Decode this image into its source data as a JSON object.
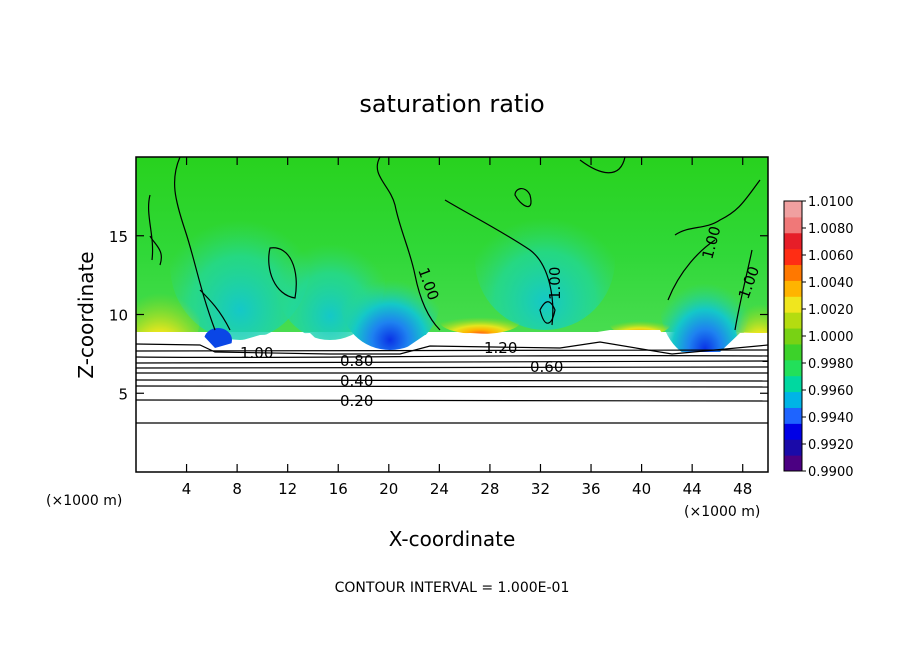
{
  "chart_data": {
    "type": "heatmap",
    "title": "saturation ratio",
    "xlabel": "X-coordinate",
    "ylabel": "Z-coordinate",
    "x_unit": "(×1000 m)",
    "xlim": [
      0,
      50
    ],
    "ylim": [
      0,
      20
    ],
    "x_ticks": [
      4,
      8,
      12,
      16,
      20,
      24,
      28,
      32,
      36,
      40,
      44,
      48
    ],
    "y_ticks": [
      5,
      10,
      15
    ],
    "colorbar": {
      "min": 0.99,
      "max": 1.01,
      "ticks": [
        "1.0100",
        "1.0080",
        "1.0060",
        "1.0040",
        "1.0020",
        "1.0000",
        "0.9980",
        "0.9960",
        "0.9940",
        "0.9920",
        "0.9900"
      ],
      "colors": [
        "#4b0082",
        "#1a0aa8",
        "#0000e6",
        "#1e64ff",
        "#00b4e6",
        "#00d8a0",
        "#22e05a",
        "#3cd22a",
        "#78d214",
        "#b4dc10",
        "#f0e61e",
        "#ffb400",
        "#ff7800",
        "#ff2d14",
        "#e61e28",
        "#f07878",
        "#f0a0a0"
      ]
    },
    "contour_labels": [
      "1.00",
      "0.80",
      "0.40",
      "0.20",
      "1.20",
      "0.60",
      "1.00",
      "1.00",
      "1.00",
      "1.00"
    ],
    "footnote": "CONTOUR INTERVAL = 1.000E-01"
  }
}
